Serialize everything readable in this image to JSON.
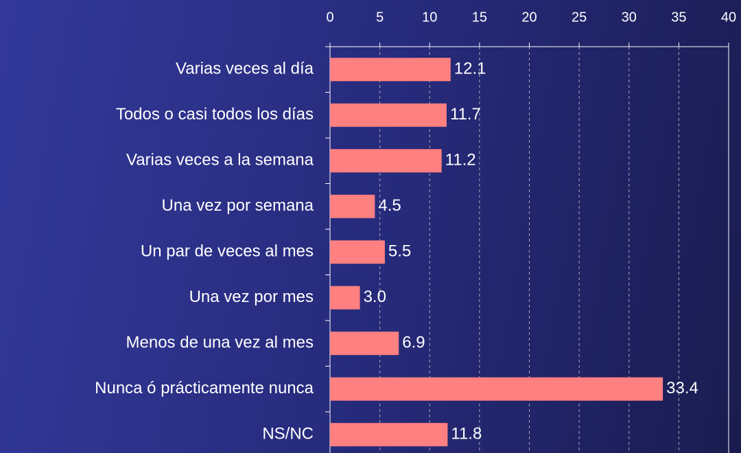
{
  "chart_data": {
    "type": "bar",
    "orientation": "horizontal",
    "categories": [
      "Varias veces al día",
      "Todos o casi todos los días",
      "Varias veces a la semana",
      "Una vez por semana",
      "Un par de veces al mes",
      "Una vez por mes",
      "Menos de una vez al mes",
      "Nunca ó prácticamente nunca",
      "NS/NC"
    ],
    "values": [
      12.1,
      11.7,
      11.2,
      4.5,
      5.5,
      3.0,
      6.9,
      33.4,
      11.8
    ],
    "value_labels": [
      "12.1",
      "11.7",
      "11.2",
      "4.5",
      "5.5",
      "3.0",
      "6.9",
      "33.4",
      "11.8"
    ],
    "color": "#ff8080",
    "xlim": [
      0,
      40
    ],
    "xticks": [
      0,
      5,
      10,
      15,
      20,
      25,
      30,
      35,
      40
    ],
    "grid": true
  }
}
